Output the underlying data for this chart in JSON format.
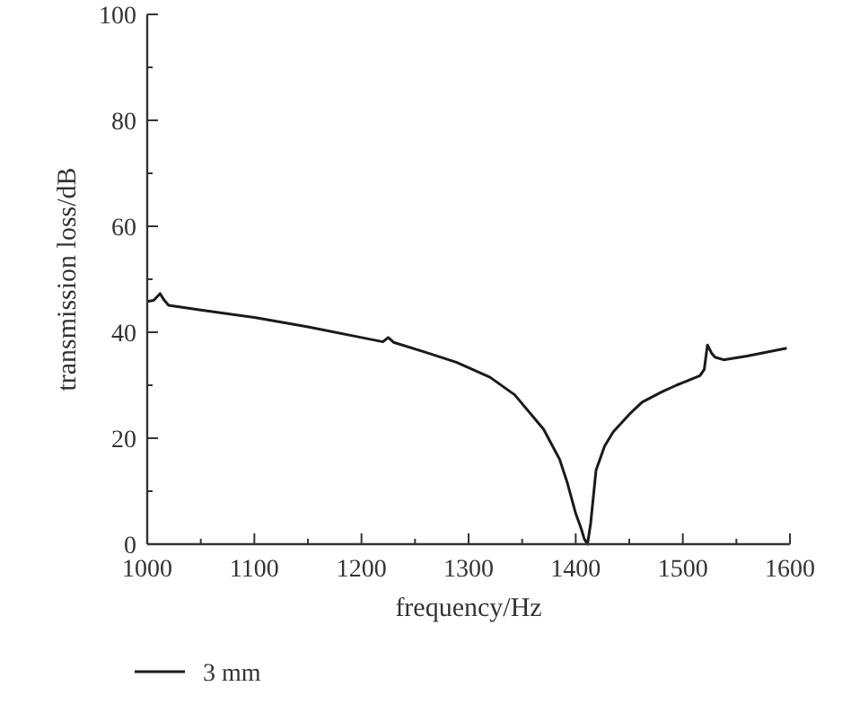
{
  "chart_data": {
    "type": "line",
    "xlabel": "frequency/Hz",
    "ylabel": "transmission loss/dB",
    "xlim": [
      1000,
      1600
    ],
    "xticks": [
      1000,
      1100,
      1200,
      1300,
      1400,
      1500,
      1600
    ],
    "ylim": [
      0,
      100
    ],
    "yticks": [
      0,
      20,
      40,
      60,
      80,
      100
    ],
    "legend": "bottom",
    "grid": false,
    "series": [
      {
        "name": "3 mm",
        "color": "#1a1a1a",
        "x": [
          1000,
          1006,
          1012,
          1016,
          1020,
          1050,
          1100,
          1150,
          1200,
          1220,
          1225,
          1230,
          1260,
          1289,
          1320,
          1343,
          1370,
          1385,
          1392,
          1400,
          1405,
          1408,
          1411,
          1414,
          1419,
          1427,
          1435,
          1450,
          1462,
          1480,
          1494,
          1516,
          1520,
          1523,
          1527,
          1530,
          1538,
          1560,
          1580,
          1597
        ],
        "values": [
          45.8,
          46,
          47.3,
          46,
          45.1,
          44.2,
          42.8,
          41,
          39,
          38.2,
          39,
          38.1,
          36.2,
          34.3,
          31.5,
          28.2,
          21.7,
          16,
          11.7,
          5.8,
          3,
          1,
          0,
          4,
          14,
          18.5,
          21.2,
          24.5,
          26.8,
          28.7,
          30,
          31.8,
          33,
          37.6,
          36,
          35.3,
          34.8,
          35.5,
          36.3,
          37
        ]
      }
    ]
  }
}
